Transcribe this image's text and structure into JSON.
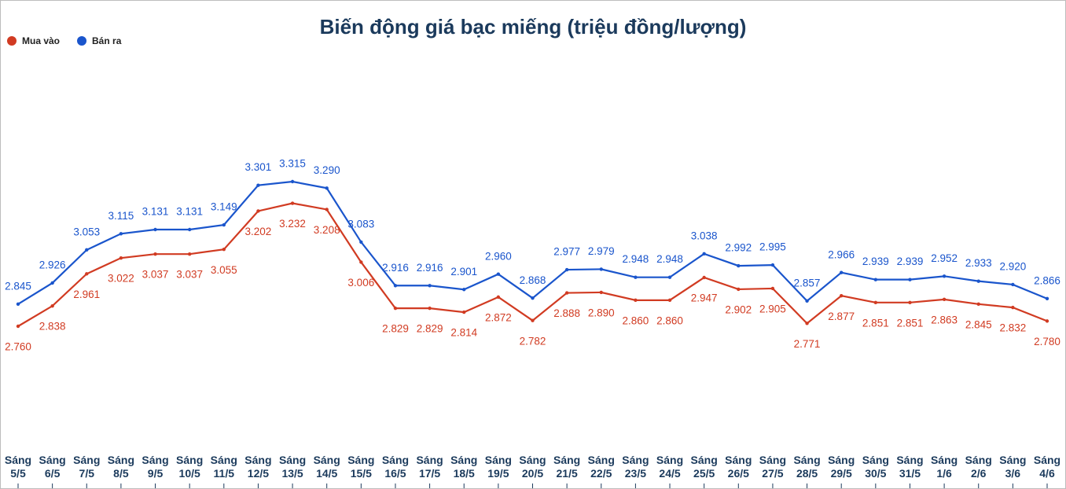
{
  "chart_data": {
    "type": "line",
    "title": "Biến động giá bạc miếng (triệu đồng/lượng)",
    "categories": [
      "Sáng 5/5",
      "Sáng 6/5",
      "Sáng 7/5",
      "Sáng 8/5",
      "Sáng 9/5",
      "Sáng 10/5",
      "Sáng 11/5",
      "Sáng 12/5",
      "Sáng 13/5",
      "Sáng 14/5",
      "Sáng 15/5",
      "Sáng 16/5",
      "Sáng 17/5",
      "Sáng 18/5",
      "Sáng 19/5",
      "Sáng 20/5",
      "Sáng 21/5",
      "Sáng 22/5",
      "Sáng 23/5",
      "Sáng 24/5",
      "Sáng 25/5",
      "Sáng 26/5",
      "Sáng 27/5",
      "Sáng 28/5",
      "Sáng 29/5",
      "Sáng 30/5",
      "Sáng 31/5",
      "Sáng 1/6",
      "Sáng 2/6",
      "Sáng 3/6",
      "Sáng 4/6"
    ],
    "legend": "top-left",
    "series": [
      {
        "name": "Mua vào",
        "color": "#d13b22",
        "values": [
          2.76,
          2.838,
          2.961,
          3.022,
          3.037,
          3.037,
          3.055,
          3.202,
          3.232,
          3.208,
          3.006,
          2.829,
          2.829,
          2.814,
          2.872,
          2.782,
          2.888,
          2.89,
          2.86,
          2.86,
          2.947,
          2.902,
          2.905,
          2.771,
          2.877,
          2.851,
          2.851,
          2.863,
          2.845,
          2.832,
          2.78
        ],
        "value_labels": [
          "2.760",
          "2.838",
          "2.961",
          "3.022",
          "3.037",
          "3.037",
          "3.055",
          "3.202",
          "3.232",
          "3.208",
          "3.006",
          "2.829",
          "2.829",
          "2.814",
          "2.872",
          "2.782",
          "2.888",
          "2.890",
          "2.860",
          "2.860",
          "2.947",
          "2.902",
          "2.905",
          "2.771",
          "2.877",
          "2.851",
          "2.851",
          "2.863",
          "2.845",
          "2.832",
          "2.780"
        ]
      },
      {
        "name": "Bán ra",
        "color": "#1a55cc",
        "values": [
          2.845,
          2.926,
          3.053,
          3.115,
          3.131,
          3.131,
          3.149,
          3.301,
          3.315,
          3.29,
          3.083,
          2.916,
          2.916,
          2.901,
          2.96,
          2.868,
          2.977,
          2.979,
          2.948,
          2.948,
          3.038,
          2.992,
          2.995,
          2.857,
          2.966,
          2.939,
          2.939,
          2.952,
          2.933,
          2.92,
          2.866
        ],
        "value_labels": [
          "2.845",
          "2.926",
          "3.053",
          "3.115",
          "3.131",
          "3.131",
          "3.149",
          "3.301",
          "3.315",
          "3.290",
          "3.083",
          "2.916",
          "2.916",
          "2.901",
          "2.960",
          "2.868",
          "2.977",
          "2.979",
          "2.948",
          "2.948",
          "3.038",
          "2.992",
          "2.995",
          "2.857",
          "2.966",
          "2.939",
          "2.939",
          "2.952",
          "2.933",
          "2.920",
          "2.866"
        ]
      }
    ]
  }
}
